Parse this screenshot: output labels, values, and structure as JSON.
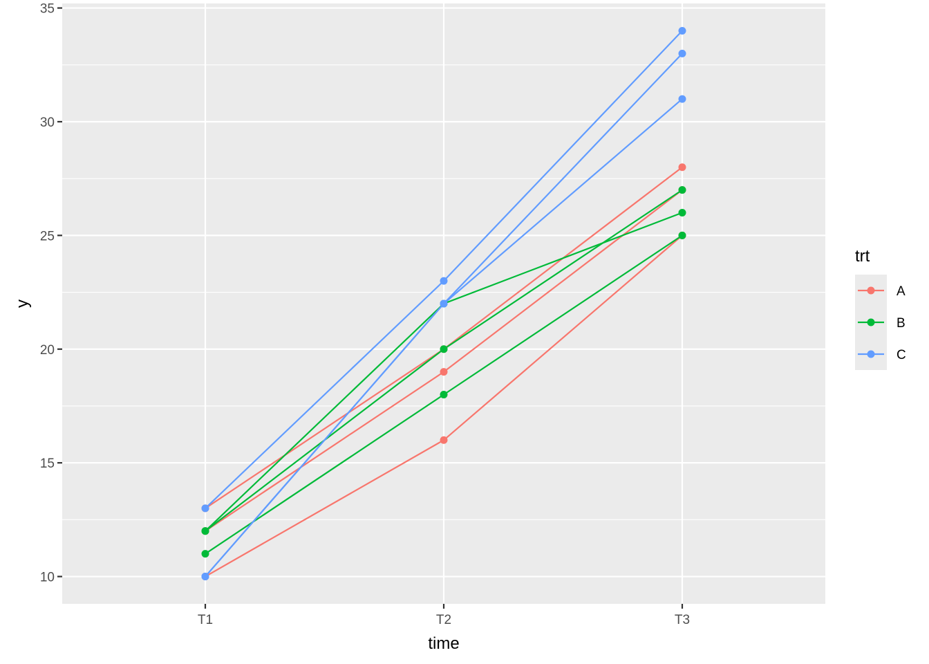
{
  "chart_data": {
    "type": "line",
    "title": "",
    "xlabel": "time",
    "ylabel": "y",
    "categories": [
      "T1",
      "T2",
      "T3"
    ],
    "ylim": [
      8.8,
      35.2
    ],
    "y_ticks": [
      10,
      15,
      20,
      25,
      30,
      35
    ],
    "grid": true,
    "legend": {
      "title": "trt",
      "placement": "right",
      "entries": [
        {
          "name": "A",
          "color": "#F8766D"
        },
        {
          "name": "B",
          "color": "#00BA38"
        },
        {
          "name": "C",
          "color": "#619CFF"
        }
      ]
    },
    "series": [
      {
        "group": "A",
        "values": [
          10,
          16,
          25
        ]
      },
      {
        "group": "A",
        "values": [
          12,
          19,
          27
        ]
      },
      {
        "group": "A",
        "values": [
          13,
          20,
          28
        ]
      },
      {
        "group": "B",
        "values": [
          12,
          20,
          27
        ]
      },
      {
        "group": "B",
        "values": [
          11,
          18,
          25
        ]
      },
      {
        "group": "B",
        "values": [
          12,
          22,
          26
        ]
      },
      {
        "group": "C",
        "values": [
          10,
          22,
          33
        ]
      },
      {
        "group": "C",
        "values": [
          13,
          23,
          34
        ]
      },
      {
        "group": "C",
        "values": [
          10,
          22,
          31
        ]
      }
    ]
  }
}
